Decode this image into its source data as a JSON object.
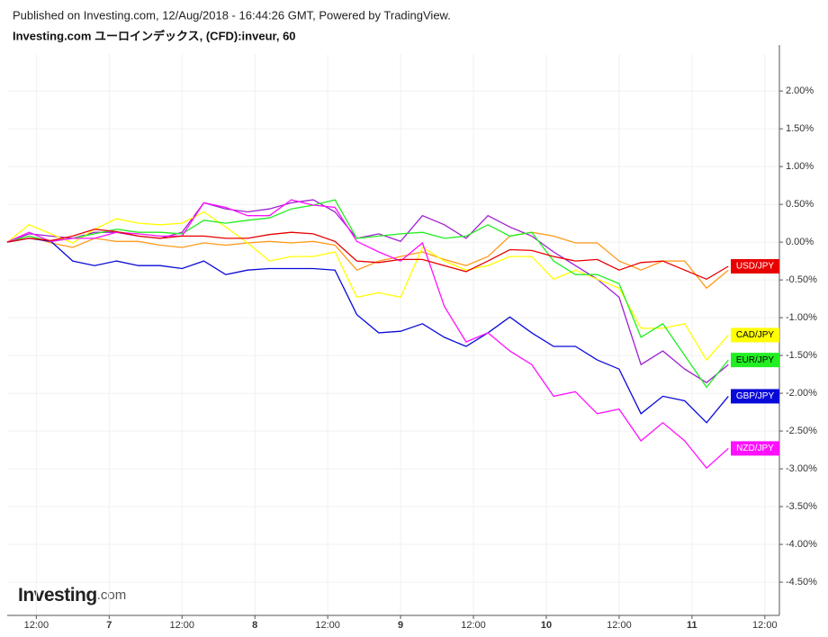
{
  "chart_data": {
    "type": "line",
    "header": "Published on Investing.com, 12/Aug/2018 - 16:44:26 GMT, Powered by TradingView.",
    "title": "Investing.com ユーロインデックス, (CFD):inveur, 60",
    "logo_main": "Investing",
    "logo_suffix": ".com",
    "grid": true,
    "xlim": [
      6.3,
      11.6
    ],
    "ylim": [
      -4.94,
      2.49
    ],
    "xticks": [
      {
        "value": 6.5,
        "label": "12:00"
      },
      7,
      {
        "value": 7.5,
        "label": "12:00"
      },
      8,
      {
        "value": 8.5,
        "label": "12:00"
      },
      9,
      {
        "value": 9.5,
        "label": "12:00"
      },
      10,
      {
        "value": 10.5,
        "label": "12:00"
      },
      11,
      {
        "value": 11.5,
        "label": "12:00"
      }
    ],
    "yticks": [
      {
        "value": 2,
        "label": "2.00%"
      },
      {
        "value": 1.5,
        "label": "1.50%"
      },
      {
        "value": 1,
        "label": "1.00%"
      },
      {
        "value": 0.5,
        "label": "0.50%"
      },
      {
        "value": 0,
        "label": "0.00%"
      },
      {
        "value": -0.5,
        "label": "-0.50%"
      },
      {
        "value": -1,
        "label": "-1.00%"
      },
      {
        "value": -1.5,
        "label": "-1.50%"
      },
      {
        "value": -2,
        "label": "-2.00%"
      },
      {
        "value": -2.5,
        "label": "-2.50%"
      },
      {
        "value": -3,
        "label": "-3.00%"
      },
      {
        "value": -3.5,
        "label": "-3.50%"
      },
      {
        "value": -4,
        "label": "-4.00%"
      },
      {
        "value": -4.5,
        "label": "-4.50%"
      }
    ],
    "x": [
      6.3,
      6.45,
      6.6,
      6.75,
      6.9,
      7.05,
      7.2,
      7.35,
      7.5,
      7.65,
      7.8,
      7.95,
      8.1,
      8.25,
      8.4,
      8.55,
      8.7,
      8.85,
      9.0,
      9.15,
      9.3,
      9.45,
      9.6,
      9.75,
      9.9,
      10.05,
      10.2,
      10.35,
      10.5,
      10.65,
      10.8,
      10.95,
      11.1,
      11.25
    ],
    "series": [
      {
        "color": "#ff9a1a",
        "values": [
          0,
          0.08,
          -0.01,
          -0.07,
          0.05,
          0.01,
          0.01,
          -0.04,
          -0.07,
          -0.01,
          -0.04,
          -0.01,
          0.01,
          -0.01,
          0.01,
          -0.04,
          -0.37,
          -0.25,
          -0.19,
          -0.13,
          -0.23,
          -0.31,
          -0.19,
          0.08,
          0.13,
          0.08,
          -0.01,
          -0.01,
          -0.25,
          -0.37,
          -0.25,
          -0.25,
          -0.61,
          -0.37
        ]
      },
      {
        "color": "#a020d0",
        "values": [
          0,
          0.11,
          0.08,
          0.05,
          0.13,
          0.13,
          0.08,
          0.05,
          0.13,
          0.52,
          0.44,
          0.4,
          0.44,
          0.52,
          0.56,
          0.4,
          0.05,
          0.11,
          0.01,
          0.35,
          0.23,
          0.05,
          0.35,
          0.2,
          0.08,
          -0.13,
          -0.31,
          -0.49,
          -0.73,
          -1.62,
          -1.44,
          -1.68,
          -1.86,
          -1.62
        ]
      },
      {
        "name": "CAD/JPY",
        "color": "#ffff00",
        "values": [
          0,
          0.23,
          0.11,
          -0.01,
          0.17,
          0.31,
          0.25,
          0.23,
          0.25,
          0.4,
          0.2,
          -0.01,
          -0.25,
          -0.19,
          -0.19,
          -0.13,
          -0.73,
          -0.67,
          -0.73,
          -0.07,
          -0.25,
          -0.37,
          -0.31,
          -0.19,
          -0.19,
          -0.49,
          -0.37,
          -0.49,
          -0.61,
          -1.14,
          -1.14,
          -1.08,
          -1.56,
          -1.23
        ]
      },
      {
        "name": "EUR/JPY",
        "color": "#22ee22",
        "values": [
          0,
          0.08,
          0.01,
          0.05,
          0.11,
          0.17,
          0.13,
          0.13,
          0.11,
          0.29,
          0.25,
          0.29,
          0.32,
          0.44,
          0.49,
          0.56,
          0.05,
          0.08,
          0.11,
          0.13,
          0.05,
          0.08,
          0.23,
          0.08,
          0.13,
          -0.25,
          -0.43,
          -0.43,
          -0.55,
          -1.26,
          -1.08,
          -1.5,
          -1.92,
          -1.56
        ]
      },
      {
        "name": "GBP/JPY",
        "color": "#0a0ad8",
        "values": [
          0,
          0.05,
          0.01,
          -0.25,
          -0.31,
          -0.25,
          -0.31,
          -0.31,
          -0.35,
          -0.25,
          -0.43,
          -0.37,
          -0.35,
          -0.35,
          -0.35,
          -0.37,
          -0.96,
          -1.2,
          -1.18,
          -1.08,
          -1.26,
          -1.38,
          -1.2,
          -0.99,
          -1.2,
          -1.38,
          -1.38,
          -1.56,
          -1.68,
          -2.27,
          -2.04,
          -2.1,
          -2.39,
          -2.04
        ]
      },
      {
        "name": "NZD/JPY",
        "color": "#ff10ff",
        "values": [
          0,
          0.13,
          0.01,
          0.05,
          0.05,
          0.13,
          0.11,
          0.08,
          0.08,
          0.52,
          0.46,
          0.35,
          0.35,
          0.56,
          0.49,
          0.46,
          0.01,
          -0.13,
          -0.25,
          -0.01,
          -0.85,
          -1.32,
          -1.2,
          -1.44,
          -1.62,
          -2.04,
          -1.98,
          -2.27,
          -2.21,
          -2.63,
          -2.39,
          -2.63,
          -2.99,
          -2.73
        ]
      },
      {
        "name": "USD/JPY",
        "color": "#e80000",
        "values": [
          0,
          0.05,
          0.02,
          0.08,
          0.17,
          0.14,
          0.08,
          0.05,
          0.08,
          0.08,
          0.05,
          0.05,
          0.1,
          0.13,
          0.11,
          0.01,
          -0.25,
          -0.27,
          -0.23,
          -0.23,
          -0.31,
          -0.39,
          -0.25,
          -0.1,
          -0.11,
          -0.19,
          -0.25,
          -0.23,
          -0.37,
          -0.27,
          -0.25,
          -0.37,
          -0.49,
          -0.32
        ]
      }
    ]
  }
}
